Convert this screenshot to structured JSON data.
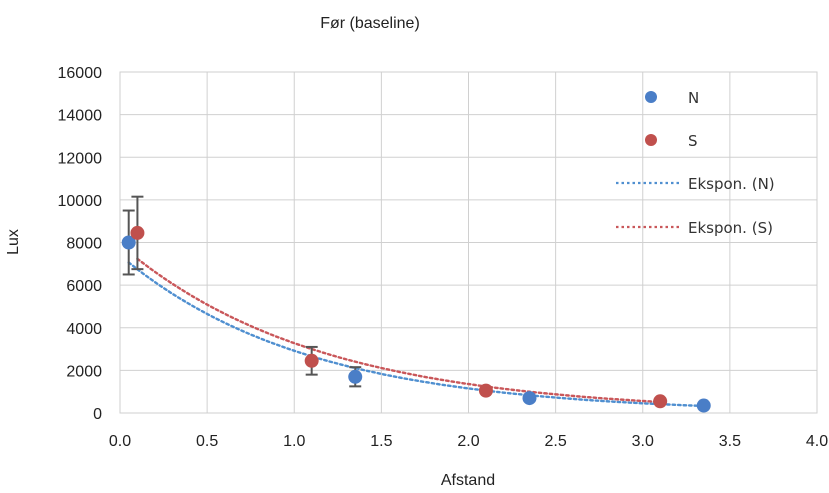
{
  "chart_data": {
    "type": "scatter",
    "title": "Før (baseline)",
    "xlabel": "Afstand",
    "ylabel": "Lux",
    "xlim": [
      0,
      4
    ],
    "ylim": [
      0,
      16000
    ],
    "xticks": [
      "0.0",
      "0.5",
      "1.0",
      "1.5",
      "2.0",
      "2.5",
      "3.0",
      "3.5",
      "4.0"
    ],
    "xtick_values": [
      0,
      0.5,
      1,
      1.5,
      2,
      2.5,
      3,
      3.5,
      4
    ],
    "yticks": [
      "0",
      "2000",
      "4000",
      "6000",
      "8000",
      "10000",
      "12000",
      "14000",
      "16000"
    ],
    "ytick_values": [
      0,
      2000,
      4000,
      6000,
      8000,
      10000,
      12000,
      14000,
      16000
    ],
    "grid": true,
    "legend_position": "top-right",
    "series": [
      {
        "name": "N",
        "color": "#4a7ec7",
        "x": [
          0.05,
          1.35,
          2.35,
          3.35
        ],
        "y": [
          8000,
          1700,
          700,
          350
        ],
        "error": [
          1500,
          450,
          0,
          0
        ]
      },
      {
        "name": "S",
        "color": "#c0504d",
        "x": [
          0.1,
          1.1,
          2.1,
          3.1
        ],
        "y": [
          8450,
          2450,
          1050,
          550
        ],
        "error": [
          1700,
          650,
          0,
          0
        ]
      }
    ],
    "trendlines": [
      {
        "name": "Ekspon. (N)",
        "color": "#4f8fd0",
        "x_range": [
          0.05,
          3.35
        ],
        "a": 7400,
        "b": -0.93
      },
      {
        "name": "Ekspon. (S)",
        "color": "#c9575a",
        "x_range": [
          0.1,
          3.1
        ],
        "a": 7900,
        "b": -0.88
      }
    ]
  }
}
